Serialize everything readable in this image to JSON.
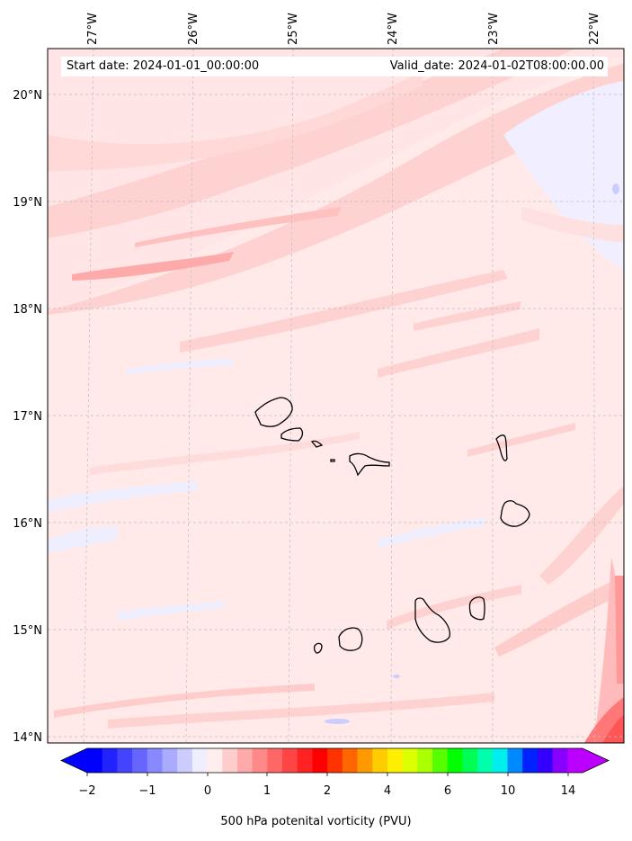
{
  "header": {
    "start_date": "Start date: 2024-01-01_00:00:00",
    "valid_date": "Valid_date: 2024-01-02T08:00:00.00"
  },
  "map": {
    "longitude_labels": [
      "27°W",
      "26°W",
      "25°W",
      "24°W",
      "23°W",
      "22°W"
    ],
    "latitude_labels": [
      "20°N",
      "19°N",
      "18°N",
      "17°N",
      "16°N",
      "15°N",
      "14°N"
    ],
    "features": [
      "Santo Antão",
      "São Vicente",
      "Santa Luzia",
      "São Nicolau",
      "Sal",
      "Boa Vista",
      "Brava",
      "Fogo",
      "Santiago",
      "Maio"
    ]
  },
  "colorbar": {
    "title": "500 hPa potenital vorticity (PVU)",
    "tick_labels": [
      "−2",
      "−1",
      "0",
      "1",
      "2",
      "4",
      "6",
      "10",
      "14"
    ],
    "colors": [
      "#0000ff",
      "#2222ff",
      "#4444ff",
      "#6666ff",
      "#8888ff",
      "#aaaaff",
      "#ccccff",
      "#eeeeff",
      "#ffeeee",
      "#ffcccc",
      "#ffaaaa",
      "#ff8888",
      "#ff6666",
      "#ff4444",
      "#ff2222",
      "#ff0000",
      "#ff3300",
      "#ff6600",
      "#ff9900",
      "#ffcc00",
      "#ffee00",
      "#ddff00",
      "#aaff00",
      "#55ff00",
      "#00ff00",
      "#00ff55",
      "#00ffaa",
      "#00eeee",
      "#0088ff",
      "#0022ff",
      "#3300ff",
      "#8800ff",
      "#bb00ff"
    ]
  }
}
